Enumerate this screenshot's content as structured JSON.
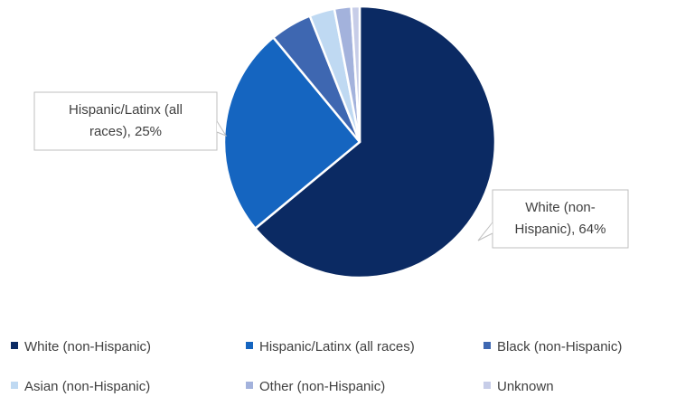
{
  "chart_data": {
    "type": "pie",
    "title": "",
    "series": [
      {
        "values": [
          {
            "label": "White (non-Hispanic)",
            "value": 64,
            "color": "#0b2a63",
            "data_label": [
              "White (non-",
              "Hispanic), 64%"
            ]
          },
          {
            "label": "Hispanic/Latinx (all races)",
            "value": 25,
            "color": "#1565c0",
            "data_label": [
              "Hispanic/Latinx (all",
              "races), 25%"
            ]
          },
          {
            "label": "Black (non-Hispanic)",
            "value": 5,
            "color": "#3e67b1",
            "data_label": null
          },
          {
            "label": "Asian (non-Hispanic)",
            "value": 3,
            "color": "#bfd9f2",
            "data_label": null
          },
          {
            "label": "Other (non-Hispanic)",
            "value": 2,
            "color": "#a3b2dc",
            "data_label": null
          },
          {
            "label": "Unknown",
            "value": 1,
            "color": "#c7cde8",
            "data_label": null
          }
        ]
      }
    ],
    "legend": {
      "position": "bottom",
      "entries": [
        "White (non-Hispanic)",
        "Hispanic/Latinx (all races)",
        "Black (non-Hispanic)",
        "Asian (non-Hispanic)",
        "Other (non-Hispanic)",
        "Unknown"
      ]
    }
  }
}
